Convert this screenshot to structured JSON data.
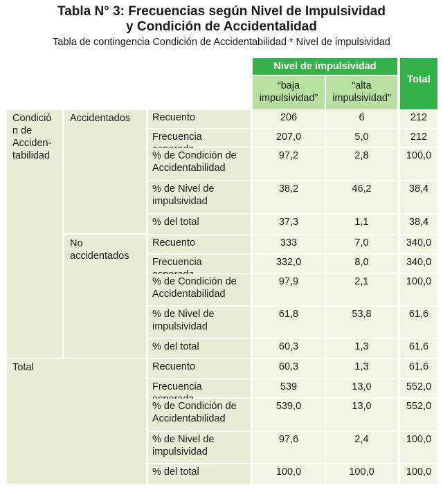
{
  "title": {
    "line1": "Tabla N° 3: Frecuencias según Nivel de Impulsividad",
    "line2": "y Condición de Accidentalidad"
  },
  "subtitle": "Tabla de contingencia Condición de Accidentabilidad * Nivel de impulsividad",
  "headers": {
    "nivel": "Nivel de impulsividad",
    "baja": "“baja impulsividad”",
    "alta": "“alta impulsividad”",
    "total": "Total"
  },
  "rowGroup": {
    "label": "Condición de Acciden-tabilidad",
    "accidentados": "Accidentados",
    "no_accidentados": "No accidentados",
    "total": "Total"
  },
  "measures": {
    "recuento": "Recuento",
    "frecuencia": "Frecuencia esperada",
    "pct_condicion": "% de Condición de Accidentabilidad",
    "pct_nivel": "% de Nivel de impulsividad",
    "pct_total": "% del total"
  },
  "rows": [
    {
      "baja": "206",
      "alta": "6",
      "total": "212"
    },
    {
      "baja": "207,0",
      "alta": "5,0",
      "total": "212"
    },
    {
      "baja": "97,2",
      "alta": "2,8",
      "total": "100,0"
    },
    {
      "baja": "38,2",
      "alta": "46,2",
      "total": "38,4"
    },
    {
      "baja": "37,3",
      "alta": "1,1",
      "total": "38,4"
    },
    {
      "baja": "333",
      "alta": "7,0",
      "total": "340,0"
    },
    {
      "baja": "332,0",
      "alta": "8,0",
      "total": "340,0"
    },
    {
      "baja": "97,9",
      "alta": "2,1",
      "total": "100,0"
    },
    {
      "baja": "61,8",
      "alta": "53,8",
      "total": "61,6"
    },
    {
      "baja": "60,3",
      "alta": "1,3",
      "total": "61,6"
    },
    {
      "baja": "60,3",
      "alta": "1,3",
      "total": "61,6"
    },
    {
      "baja": "539",
      "alta": "13,0",
      "total": "552,0"
    },
    {
      "baja": "539,0",
      "alta": "13,0",
      "total": "552,0"
    },
    {
      "baja": "97,6",
      "alta": "2,4",
      "total": "100,0"
    },
    {
      "baja": "100,0",
      "alta": "100,0",
      "total": "100,0"
    }
  ]
}
